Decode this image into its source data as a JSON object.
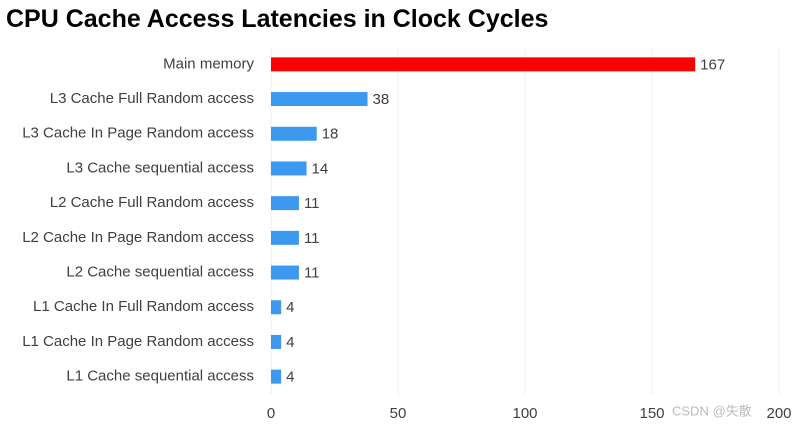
{
  "chart_data": {
    "type": "barh",
    "title": "CPU Cache Access Latencies in Clock Cycles",
    "categories": [
      "Main memory",
      "L3 Cache Full Random access",
      "L3 Cache In Page Random access",
      "L3 Cache sequential access",
      "L2 Cache Full Random access",
      "L2 Cache In Page Random access",
      "L2 Cache sequential access",
      "L1 Cache In Full Random access",
      "L1 Cache In Page Random access",
      "L1 Cache sequential access"
    ],
    "values": [
      167,
      38,
      18,
      14,
      11,
      11,
      11,
      4,
      4,
      4
    ],
    "colors": [
      "#ff0000",
      "#3d99ef",
      "#3d99ef",
      "#3d99ef",
      "#3d99ef",
      "#3d99ef",
      "#3d99ef",
      "#3d99ef",
      "#3d99ef",
      "#3d99ef"
    ],
    "xlim": [
      0,
      200
    ],
    "xticks": [
      0,
      50,
      100,
      150,
      200
    ],
    "grid": true,
    "watermark": "CSDN @失散"
  }
}
